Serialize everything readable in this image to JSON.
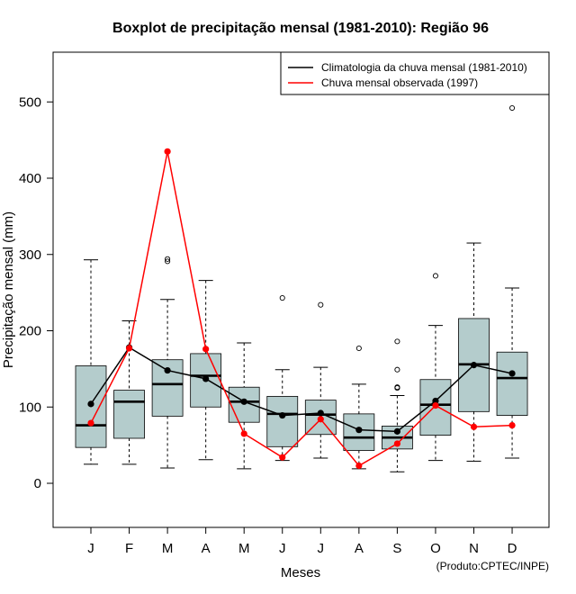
{
  "chart_data": {
    "type": "boxplot",
    "title": "Boxplot de precipitação mensal (1981-2010): Região 96",
    "xlabel": "Meses",
    "ylabel": "Precipitação mensal (mm)",
    "ylim": [
      -60,
      565
    ],
    "yticks": [
      0,
      100,
      200,
      300,
      400,
      500
    ],
    "categories": [
      "J",
      "F",
      "M",
      "A",
      "M",
      "J",
      "J",
      "A",
      "S",
      "O",
      "N",
      "D"
    ],
    "boxes": [
      {
        "low": 25,
        "q1": 47,
        "median": 76,
        "q3": 154,
        "high": 293,
        "outliers": []
      },
      {
        "low": 25,
        "q1": 59,
        "median": 107,
        "q3": 122,
        "high": 213,
        "outliers": []
      },
      {
        "low": 20,
        "q1": 88,
        "median": 130,
        "q3": 162,
        "high": 241,
        "outliers": [
          291,
          294
        ]
      },
      {
        "low": 31,
        "q1": 100,
        "median": 141,
        "q3": 170,
        "high": 266,
        "outliers": []
      },
      {
        "low": 19,
        "q1": 80,
        "median": 107,
        "q3": 126,
        "high": 184,
        "outliers": []
      },
      {
        "low": 30,
        "q1": 48,
        "median": 91,
        "q3": 114,
        "high": 149,
        "outliers": [
          243
        ]
      },
      {
        "low": 33,
        "q1": 64,
        "median": 90,
        "q3": 109,
        "high": 152,
        "outliers": [
          234
        ]
      },
      {
        "low": 19,
        "q1": 43,
        "median": 60,
        "q3": 91,
        "high": 130,
        "outliers": [
          177
        ]
      },
      {
        "low": 15,
        "q1": 45,
        "median": 60,
        "q3": 75,
        "high": 115,
        "outliers": [
          125,
          126,
          149,
          186
        ]
      },
      {
        "low": 30,
        "q1": 63,
        "median": 103,
        "q3": 136,
        "high": 207,
        "outliers": [
          272
        ]
      },
      {
        "low": 29,
        "q1": 94,
        "median": 156,
        "q3": 216,
        "high": 315,
        "outliers": []
      },
      {
        "low": 33,
        "q1": 89,
        "median": 138,
        "q3": 172,
        "high": 256,
        "outliers": [
          492
        ]
      }
    ],
    "series": [
      {
        "name": "Climatologia da chuva mensal (1981-2010)",
        "color": "#000000",
        "values": [
          104,
          178,
          148,
          137,
          107,
          89,
          92,
          70,
          68,
          108,
          155,
          144
        ]
      },
      {
        "name": "Chuva mensal observada (1997)",
        "color": "#ff0000",
        "values": [
          79,
          177,
          435,
          176,
          65,
          34,
          84,
          23,
          52,
          102,
          74,
          76
        ]
      }
    ],
    "legend_position": "top-right",
    "box_color": "#b4cccc",
    "credit": "(Produto:CPTEC/INPE)"
  }
}
